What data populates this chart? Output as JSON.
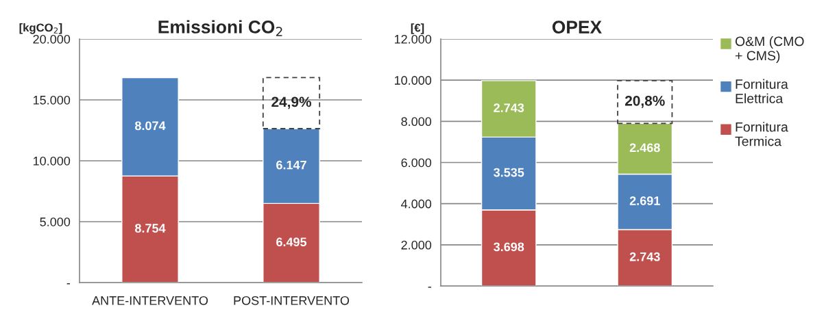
{
  "chart_data": [
    {
      "type": "bar",
      "stacked": true,
      "title": "Emissioni CO$_{2}$",
      "ylabel": "[kgCO$_{2}$]",
      "categories": [
        "ANTE-INTERVENTO",
        "POST-INTERVENTO"
      ],
      "series": [
        {
          "color": "#c0504d",
          "values": [
            8754,
            6495
          ],
          "value_labels": [
            "8.754",
            "6.495"
          ]
        },
        {
          "color": "#4f81bd",
          "values": [
            8074,
            6147
          ],
          "value_labels": [
            "8.074",
            "6.147"
          ]
        }
      ],
      "ylim": [
        0,
        20000
      ],
      "yticks": [
        {
          "value": 0,
          "label": "-"
        },
        {
          "value": 5000,
          "label": "5.000"
        },
        {
          "value": 10000,
          "label": "10.000"
        },
        {
          "value": 15000,
          "label": "15.000"
        },
        {
          "value": 20000,
          "label": "20.000"
        }
      ],
      "grid": "y",
      "legend": false,
      "annotations": [
        "24,9%"
      ]
    },
    {
      "type": "bar",
      "stacked": true,
      "title": "OPEX",
      "ylabel": "[€]",
      "categories": [
        null,
        null
      ],
      "series": [
        {
          "name": "Fornitura Termica",
          "color": "#c0504d",
          "values": [
            3698,
            2743
          ],
          "value_labels": [
            "3.698",
            "2.743"
          ]
        },
        {
          "name": "Fornitura Elettrica",
          "color": "#4f81bd",
          "values": [
            3535,
            2691
          ],
          "value_labels": [
            "3.535",
            "2.691"
          ]
        },
        {
          "name": "O&M (CMO + CMS)",
          "color": "#9bbb59",
          "values": [
            2743,
            2468
          ],
          "value_labels": [
            "2.743",
            "2.468"
          ]
        }
      ],
      "ylim": [
        0,
        12000
      ],
      "yticks": [
        {
          "value": 0,
          "label": "-"
        },
        {
          "value": 2000,
          "label": "2.000"
        },
        {
          "value": 4000,
          "label": "4.000"
        },
        {
          "value": 6000,
          "label": "6.000"
        },
        {
          "value": 8000,
          "label": "8.000"
        },
        {
          "value": 10000,
          "label": "10.000"
        },
        {
          "value": 12000,
          "label": "12.000"
        }
      ],
      "grid": "y",
      "legend": "right",
      "annotations": [
        "20,8%"
      ]
    }
  ]
}
